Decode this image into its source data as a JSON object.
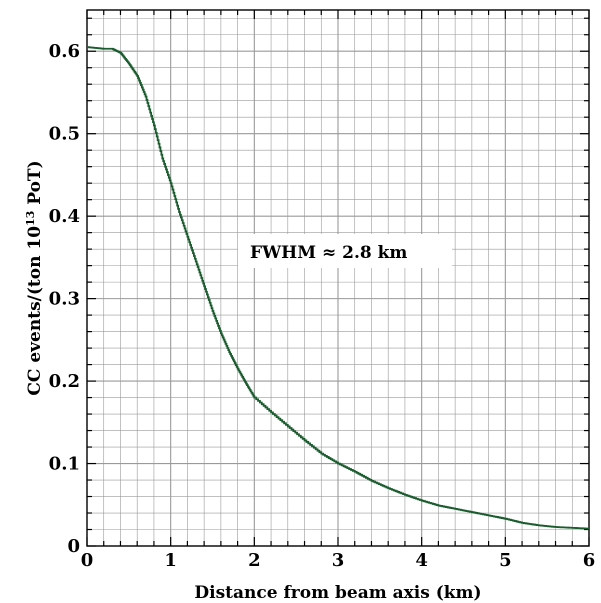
{
  "chart_data": {
    "type": "line",
    "title": "",
    "xlabel": "Distance from beam axis (km)",
    "ylabel_main": "CC events/(ton 10",
    "ylabel_sup": "13",
    "ylabel_tail": " PoT)",
    "xlim": [
      0,
      6
    ],
    "ylim": [
      0,
      0.65
    ],
    "x_ticks": [
      "0",
      "1",
      "2",
      "3",
      "4",
      "5",
      "6"
    ],
    "y_ticks": [
      "0",
      "0.1",
      "0.2",
      "0.3",
      "0.4",
      "0.5",
      "0.6"
    ],
    "grid": true,
    "annotation": "FWHM ≈ 2.8 km",
    "series": [
      {
        "color": "#1a5c2e",
        "x": [
          0,
          0.1,
          0.2,
          0.3,
          0.4,
          0.5,
          0.6,
          0.7,
          0.8,
          0.9,
          1.0,
          1.1,
          1.2,
          1.3,
          1.4,
          1.5,
          1.6,
          1.7,
          1.8,
          1.9,
          2.0,
          2.2,
          2.4,
          2.6,
          2.8,
          3.0,
          3.2,
          3.4,
          3.6,
          3.8,
          4.0,
          4.2,
          4.4,
          4.6,
          4.8,
          5.0,
          5.2,
          5.4,
          5.6,
          5.8,
          6.0
        ],
        "y": [
          0.605,
          0.604,
          0.603,
          0.603,
          0.598,
          0.585,
          0.57,
          0.545,
          0.51,
          0.47,
          0.44,
          0.405,
          0.375,
          0.345,
          0.315,
          0.285,
          0.258,
          0.235,
          0.215,
          0.197,
          0.18,
          0.162,
          0.145,
          0.128,
          0.112,
          0.1,
          0.09,
          0.079,
          0.07,
          0.062,
          0.055,
          0.049,
          0.045,
          0.041,
          0.037,
          0.033,
          0.028,
          0.025,
          0.023,
          0.022,
          0.021
        ]
      }
    ]
  }
}
